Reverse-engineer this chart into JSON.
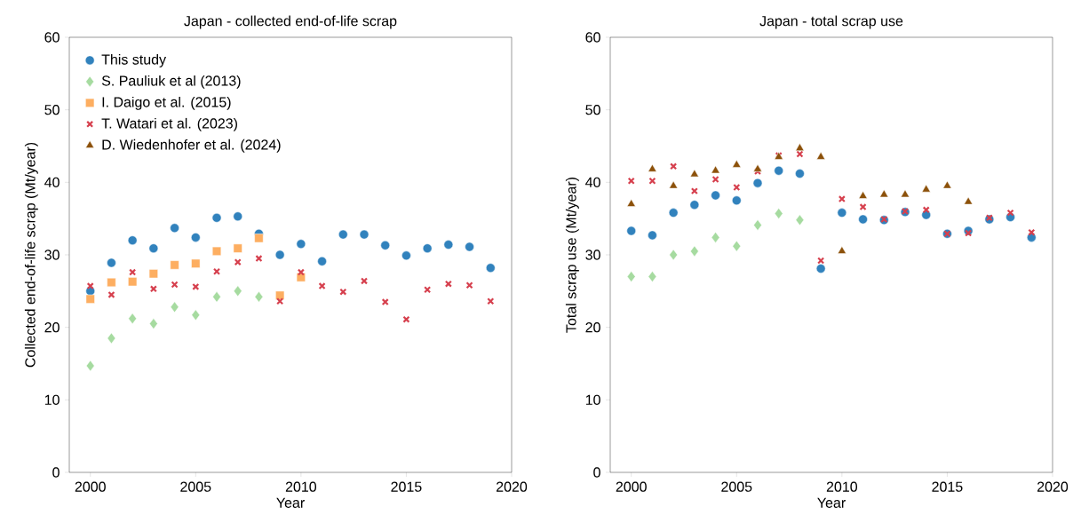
{
  "chart_data": [
    {
      "type": "scatter",
      "title": "Japan - collected end-of-life scrap",
      "xlabel": "Year",
      "ylabel": "Collected end-of-life scrap (Mt/year)",
      "xlim": [
        1999,
        2020
      ],
      "xticks": [
        2000,
        2005,
        2010,
        2015,
        2020
      ],
      "ylim": [
        0,
        60
      ],
      "yticks": [
        0,
        10,
        20,
        30,
        40,
        50,
        60
      ],
      "legend": "top left",
      "series": [
        {
          "name": "This study",
          "color": "#3182bd",
          "marker": "circle",
          "x": [
            2000,
            2001,
            2002,
            2003,
            2004,
            2005,
            2006,
            2007,
            2008,
            2009,
            2010,
            2011,
            2012,
            2013,
            2014,
            2015,
            2016,
            2017,
            2018,
            2019
          ],
          "values": [
            25.0,
            28.9,
            32.0,
            30.9,
            33.7,
            32.4,
            35.1,
            35.3,
            32.9,
            30.0,
            31.5,
            29.1,
            32.8,
            32.8,
            31.3,
            29.9,
            30.9,
            31.4,
            31.1,
            28.2
          ]
        },
        {
          "name": "S. Pauliuk et al (2013)",
          "color": "#a6dba0",
          "marker": "diamond",
          "x": [
            2000,
            2001,
            2002,
            2003,
            2004,
            2005,
            2006,
            2007,
            2008
          ],
          "values": [
            14.7,
            18.5,
            21.2,
            20.5,
            22.8,
            21.7,
            24.2,
            25.0,
            24.2
          ]
        },
        {
          "name": "I. Daigo et al. (2015)",
          "color": "#fdae61",
          "marker": "square",
          "x": [
            2000,
            2001,
            2002,
            2003,
            2004,
            2005,
            2006,
            2007,
            2008,
            2009,
            2010
          ],
          "values": [
            23.9,
            26.2,
            26.3,
            27.4,
            28.6,
            28.8,
            30.5,
            30.9,
            32.3,
            24.4,
            26.9
          ]
        },
        {
          "name": "T. Watari et al. (2023)",
          "color": "#d6404e",
          "marker": "cross",
          "x": [
            2000,
            2001,
            2002,
            2003,
            2004,
            2005,
            2006,
            2007,
            2008,
            2009,
            2010,
            2011,
            2012,
            2013,
            2014,
            2015,
            2016,
            2017,
            2018,
            2019
          ],
          "values": [
            25.7,
            24.5,
            27.6,
            25.3,
            25.9,
            25.6,
            27.7,
            29.0,
            29.5,
            23.6,
            27.6,
            25.7,
            24.9,
            26.4,
            23.5,
            21.1,
            25.2,
            26.0,
            25.8,
            23.6
          ]
        },
        {
          "name": "D. Wiedenhofer et al. (2024)",
          "color": "#8c510a",
          "marker": "triangle"
        }
      ]
    },
    {
      "type": "scatter",
      "title": "Japan - total scrap use",
      "xlabel": "Year",
      "ylabel": "Total scrap use (Mt/year)",
      "xlim": [
        1999,
        2020
      ],
      "xticks": [
        2000,
        2005,
        2010,
        2015,
        2020
      ],
      "ylim": [
        0,
        60
      ],
      "yticks": [
        0,
        10,
        20,
        30,
        40,
        50,
        60
      ],
      "series": [
        {
          "color": "#3182bd",
          "marker": "circle",
          "x": [
            2000,
            2001,
            2002,
            2003,
            2004,
            2005,
            2006,
            2007,
            2008,
            2009,
            2010,
            2011,
            2012,
            2013,
            2014,
            2015,
            2016,
            2017,
            2018,
            2019
          ],
          "values": [
            33.3,
            32.7,
            35.8,
            36.9,
            38.2,
            37.5,
            39.9,
            41.6,
            41.2,
            28.1,
            35.8,
            34.9,
            34.8,
            35.9,
            35.5,
            32.9,
            33.3,
            34.9,
            35.2,
            32.4
          ]
        },
        {
          "color": "#a6dba0",
          "marker": "diamond",
          "x": [
            2000,
            2001,
            2002,
            2003,
            2004,
            2005,
            2006,
            2007,
            2008
          ],
          "values": [
            27.0,
            27.0,
            30.0,
            30.5,
            32.4,
            31.2,
            34.1,
            35.7,
            34.8
          ]
        },
        {
          "color": "#d6404e",
          "marker": "cross",
          "x": [
            2000,
            2001,
            2002,
            2003,
            2004,
            2005,
            2006,
            2007,
            2008,
            2009,
            2010,
            2011,
            2012,
            2013,
            2014,
            2015,
            2016,
            2017,
            2018,
            2019
          ],
          "values": [
            40.2,
            40.2,
            42.2,
            38.8,
            40.4,
            39.3,
            41.5,
            43.7,
            43.9,
            29.2,
            37.7,
            36.6,
            34.9,
            36.0,
            36.2,
            32.9,
            33.0,
            35.1,
            35.8,
            33.1
          ]
        },
        {
          "color": "#8c510a",
          "marker": "triangle",
          "x": [
            2000,
            2001,
            2002,
            2003,
            2004,
            2005,
            2006,
            2007,
            2008,
            2009,
            2010,
            2011,
            2012,
            2013,
            2014,
            2015,
            2016
          ],
          "values": [
            37.0,
            41.8,
            39.5,
            41.1,
            41.6,
            42.4,
            41.8,
            43.5,
            44.7,
            43.5,
            30.5,
            38.1,
            38.3,
            38.3,
            39.0,
            39.5,
            37.3
          ]
        }
      ]
    }
  ]
}
